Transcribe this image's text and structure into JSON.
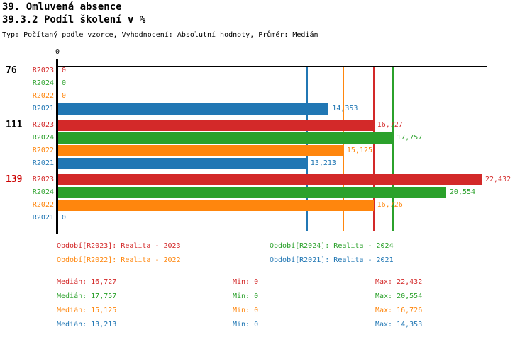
{
  "header": {
    "title1": "39. Omluvená absence",
    "title2": "39.3.2 Podíl školení v %",
    "subtitle": "Typ: Počítaný podle vzorce, Vyhodnocení: Absolutní hodnoty, Průměr: Medián"
  },
  "colors": {
    "R2023": "#d32929",
    "R2024": "#2ba12b",
    "R2022": "#ff860d",
    "R2021": "#2177b4",
    "axis": "#000000",
    "alert_group_label": "#cc0000",
    "normal_group_label": "#000000"
  },
  "chart_data": {
    "type": "bar",
    "orientation": "horizontal",
    "title": "39.3.2 Podíl školení v %",
    "x_axis": {
      "zero_tick_label": "0",
      "xmin": 0,
      "xmax": 22700,
      "grid": false
    },
    "series_order": [
      "R2023",
      "R2024",
      "R2022",
      "R2021"
    ],
    "groups": [
      {
        "label": "76",
        "label_color": "#000000",
        "values": {
          "R2023": 0,
          "R2024": 0,
          "R2022": 0,
          "R2021": 14353
        },
        "display": {
          "R2023": "0",
          "R2024": "0",
          "R2022": "0",
          "R2021": "14,353"
        }
      },
      {
        "label": "111",
        "label_color": "#000000",
        "values": {
          "R2023": 16727,
          "R2024": 17757,
          "R2022": 15125,
          "R2021": 13213
        },
        "display": {
          "R2023": "16,727",
          "R2024": "17,757",
          "R2022": "15,125",
          "R2021": "13,213"
        }
      },
      {
        "label": "139",
        "label_color": "#cc0000",
        "values": {
          "R2023": 22432,
          "R2024": 20554,
          "R2022": 16726,
          "R2021": 0
        },
        "display": {
          "R2023": "22,432",
          "R2024": "20,554",
          "R2022": "16,726",
          "R2021": "0"
        }
      }
    ],
    "median_lines": [
      {
        "series": "R2021",
        "value": 13213
      },
      {
        "series": "R2022",
        "value": 15125
      },
      {
        "series": "R2023",
        "value": 16727
      },
      {
        "series": "R2024",
        "value": 17757
      }
    ]
  },
  "legend": {
    "items": [
      {
        "label": "Období[R2023]: Realita - 2023",
        "series": "R2023",
        "col": 0,
        "row": 0
      },
      {
        "label": "Období[R2024]: Realita - 2024",
        "series": "R2024",
        "col": 1,
        "row": 0
      },
      {
        "label": "Období[R2022]: Realita - 2022",
        "series": "R2022",
        "col": 0,
        "row": 1
      },
      {
        "label": "Období[R2021]: Realita - 2021",
        "series": "R2021",
        "col": 1,
        "row": 1
      }
    ]
  },
  "stats": {
    "median_label": "Medián:",
    "min_label": "Min:",
    "max_label": "Max:",
    "rows": [
      {
        "series": "R2023",
        "median": "16,727",
        "min": "0",
        "max": "22,432"
      },
      {
        "series": "R2024",
        "median": "17,757",
        "min": "0",
        "max": "20,554"
      },
      {
        "series": "R2022",
        "median": "15,125",
        "min": "0",
        "max": "16,726"
      },
      {
        "series": "R2021",
        "median": "13,213",
        "min": "0",
        "max": "14,353"
      }
    ]
  }
}
